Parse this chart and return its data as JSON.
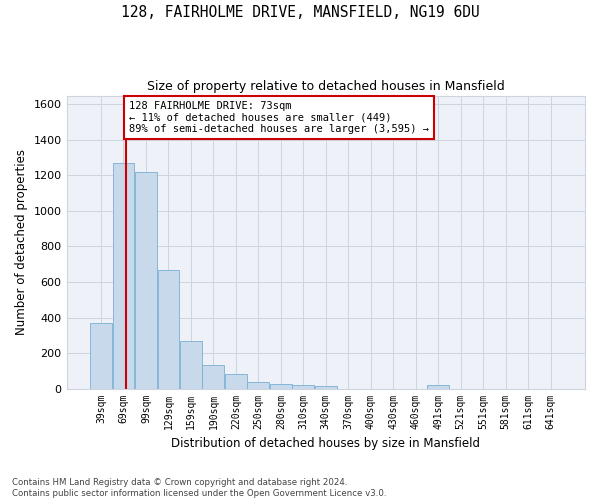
{
  "title": "128, FAIRHOLME DRIVE, MANSFIELD, NG19 6DU",
  "subtitle": "Size of property relative to detached houses in Mansfield",
  "xlabel": "Distribution of detached houses by size in Mansfield",
  "ylabel": "Number of detached properties",
  "categories": [
    "39sqm",
    "69sqm",
    "99sqm",
    "129sqm",
    "159sqm",
    "190sqm",
    "220sqm",
    "250sqm",
    "280sqm",
    "310sqm",
    "340sqm",
    "370sqm",
    "400sqm",
    "430sqm",
    "460sqm",
    "491sqm",
    "521sqm",
    "551sqm",
    "581sqm",
    "611sqm",
    "641sqm"
  ],
  "values": [
    370,
    1270,
    1220,
    665,
    265,
    130,
    82,
    35,
    25,
    18,
    15,
    0,
    0,
    0,
    0,
    18,
    0,
    0,
    0,
    0,
    0
  ],
  "bar_color": "#c9d9ec",
  "bar_edge_color": "#7aafd4",
  "grid_color": "#ccd5e0",
  "annotation_line_color": "#cc0000",
  "annotation_box_text": "128 FAIRHOLME DRIVE: 73sqm\n← 11% of detached houses are smaller (449)\n89% of semi-detached houses are larger (3,595) →",
  "annotation_box_color": "#cc0000",
  "ylim": [
    0,
    1650
  ],
  "yticks": [
    0,
    200,
    400,
    600,
    800,
    1000,
    1200,
    1400,
    1600
  ],
  "footer": "Contains HM Land Registry data © Crown copyright and database right 2024.\nContains public sector information licensed under the Open Government Licence v3.0.",
  "background_color": "#ffffff",
  "plot_background_color": "#eef2f8"
}
